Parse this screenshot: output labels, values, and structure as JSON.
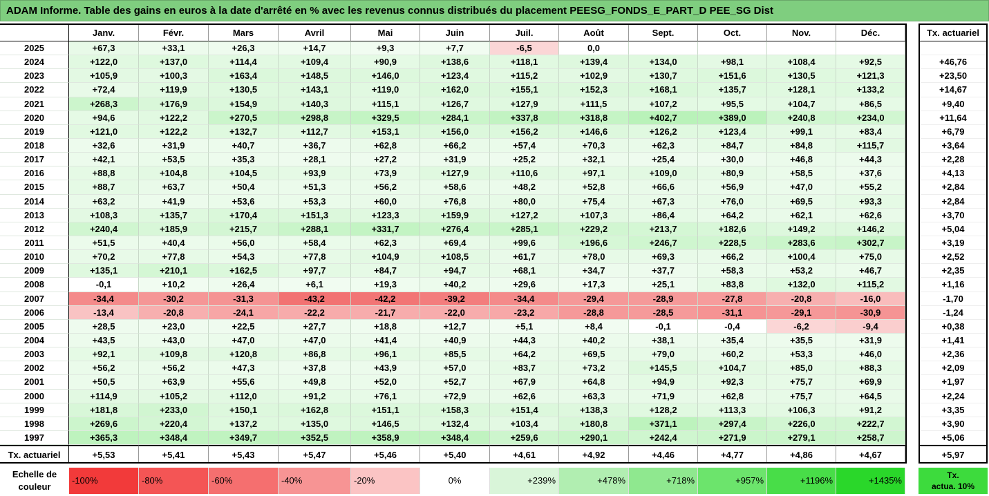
{
  "title": "ADAM Informe. Table des gains en euros à la date d'arrêté en % avec les revenus connus distribués du placement PEESG_FONDS_E_PART_D PEE_SG Dist",
  "months": [
    "Janv.",
    "Févr.",
    "Mars",
    "Avril",
    "Mai",
    "Juin",
    "Juil.",
    "Août",
    "Sept.",
    "Oct.",
    "Nov.",
    "Déc."
  ],
  "side_header": "Tx. actuariel",
  "rows": [
    {
      "year": "2025",
      "values": [
        "+67,3",
        "+33,1",
        "+26,3",
        "+14,7",
        "+9,3",
        "+7,7",
        "-6,5",
        "0,0",
        "",
        "",
        "",
        ""
      ],
      "tx": ""
    },
    {
      "year": "2024",
      "values": [
        "+122,0",
        "+137,0",
        "+114,4",
        "+109,4",
        "+90,9",
        "+138,6",
        "+118,1",
        "+139,4",
        "+134,0",
        "+98,1",
        "+108,4",
        "+92,5"
      ],
      "tx": "+46,76"
    },
    {
      "year": "2023",
      "values": [
        "+105,9",
        "+100,3",
        "+163,4",
        "+148,5",
        "+146,0",
        "+123,4",
        "+115,2",
        "+102,9",
        "+130,7",
        "+151,6",
        "+130,5",
        "+121,3"
      ],
      "tx": "+23,50"
    },
    {
      "year": "2022",
      "values": [
        "+72,4",
        "+119,9",
        "+130,5",
        "+143,1",
        "+119,0",
        "+162,0",
        "+155,1",
        "+152,3",
        "+168,1",
        "+135,7",
        "+128,1",
        "+133,2"
      ],
      "tx": "+14,67"
    },
    {
      "year": "2021",
      "values": [
        "+268,3",
        "+176,9",
        "+154,9",
        "+140,3",
        "+115,1",
        "+126,7",
        "+127,9",
        "+111,5",
        "+107,2",
        "+95,5",
        "+104,7",
        "+86,5"
      ],
      "tx": "+9,40"
    },
    {
      "year": "2020",
      "values": [
        "+94,6",
        "+122,2",
        "+270,5",
        "+298,8",
        "+329,5",
        "+284,1",
        "+337,8",
        "+318,8",
        "+402,7",
        "+389,0",
        "+240,8",
        "+234,0"
      ],
      "tx": "+11,64"
    },
    {
      "year": "2019",
      "values": [
        "+121,0",
        "+122,2",
        "+132,7",
        "+112,7",
        "+153,1",
        "+156,0",
        "+156,2",
        "+146,6",
        "+126,2",
        "+123,4",
        "+99,1",
        "+83,4"
      ],
      "tx": "+6,79"
    },
    {
      "year": "2018",
      "values": [
        "+32,6",
        "+31,9",
        "+40,7",
        "+36,7",
        "+62,8",
        "+66,2",
        "+57,4",
        "+70,3",
        "+62,3",
        "+84,7",
        "+84,8",
        "+115,7"
      ],
      "tx": "+3,64"
    },
    {
      "year": "2017",
      "values": [
        "+42,1",
        "+53,5",
        "+35,3",
        "+28,1",
        "+27,2",
        "+31,9",
        "+25,2",
        "+32,1",
        "+25,4",
        "+30,0",
        "+46,8",
        "+44,3"
      ],
      "tx": "+2,28"
    },
    {
      "year": "2016",
      "values": [
        "+88,8",
        "+104,8",
        "+104,5",
        "+93,9",
        "+73,9",
        "+127,9",
        "+110,6",
        "+97,1",
        "+109,0",
        "+80,9",
        "+58,5",
        "+37,6"
      ],
      "tx": "+4,13"
    },
    {
      "year": "2015",
      "values": [
        "+88,7",
        "+63,7",
        "+50,4",
        "+51,3",
        "+56,2",
        "+58,6",
        "+48,2",
        "+52,8",
        "+66,6",
        "+56,9",
        "+47,0",
        "+55,2"
      ],
      "tx": "+2,84"
    },
    {
      "year": "2014",
      "values": [
        "+63,2",
        "+41,9",
        "+53,6",
        "+53,3",
        "+60,0",
        "+76,8",
        "+80,0",
        "+75,4",
        "+67,3",
        "+76,0",
        "+69,5",
        "+93,3"
      ],
      "tx": "+2,84"
    },
    {
      "year": "2013",
      "values": [
        "+108,3",
        "+135,7",
        "+170,4",
        "+151,3",
        "+123,3",
        "+159,9",
        "+127,2",
        "+107,3",
        "+86,4",
        "+64,2",
        "+62,1",
        "+62,6"
      ],
      "tx": "+3,70"
    },
    {
      "year": "2012",
      "values": [
        "+240,4",
        "+185,9",
        "+215,7",
        "+288,1",
        "+331,7",
        "+276,4",
        "+285,1",
        "+229,2",
        "+213,7",
        "+182,6",
        "+149,2",
        "+146,2"
      ],
      "tx": "+5,04"
    },
    {
      "year": "2011",
      "values": [
        "+51,5",
        "+40,4",
        "+56,0",
        "+58,4",
        "+62,3",
        "+69,4",
        "+99,6",
        "+196,6",
        "+246,7",
        "+228,5",
        "+283,6",
        "+302,7"
      ],
      "tx": "+3,19"
    },
    {
      "year": "2010",
      "values": [
        "+70,2",
        "+77,8",
        "+54,3",
        "+77,8",
        "+104,9",
        "+108,5",
        "+61,7",
        "+78,0",
        "+69,3",
        "+66,2",
        "+100,4",
        "+75,0"
      ],
      "tx": "+2,52"
    },
    {
      "year": "2009",
      "values": [
        "+135,1",
        "+210,1",
        "+162,5",
        "+97,7",
        "+84,7",
        "+94,7",
        "+68,1",
        "+34,7",
        "+37,7",
        "+58,3",
        "+53,2",
        "+46,7"
      ],
      "tx": "+2,35"
    },
    {
      "year": "2008",
      "values": [
        "-0,1",
        "+10,2",
        "+26,4",
        "+6,1",
        "+19,3",
        "+40,2",
        "+29,6",
        "+17,3",
        "+25,1",
        "+83,8",
        "+132,0",
        "+115,2"
      ],
      "tx": "+1,16"
    },
    {
      "year": "2007",
      "values": [
        "-34,4",
        "-30,2",
        "-31,3",
        "-43,2",
        "-42,2",
        "-39,2",
        "-34,4",
        "-29,4",
        "-28,9",
        "-27,8",
        "-20,8",
        "-16,0"
      ],
      "tx": "-1,70"
    },
    {
      "year": "2006",
      "values": [
        "-13,4",
        "-20,8",
        "-24,1",
        "-22,2",
        "-21,7",
        "-22,0",
        "-23,2",
        "-28,8",
        "-28,5",
        "-31,1",
        "-29,1",
        "-30,9"
      ],
      "tx": "-1,24"
    },
    {
      "year": "2005",
      "values": [
        "+28,5",
        "+23,0",
        "+22,5",
        "+27,7",
        "+18,8",
        "+12,7",
        "+5,1",
        "+8,4",
        "-0,1",
        "-0,4",
        "-6,2",
        "-9,4"
      ],
      "tx": "+0,38"
    },
    {
      "year": "2004",
      "values": [
        "+43,5",
        "+43,0",
        "+47,0",
        "+47,0",
        "+41,4",
        "+40,9",
        "+44,3",
        "+40,2",
        "+38,1",
        "+35,4",
        "+35,5",
        "+31,9"
      ],
      "tx": "+1,41"
    },
    {
      "year": "2003",
      "values": [
        "+92,1",
        "+109,8",
        "+120,8",
        "+86,8",
        "+96,1",
        "+85,5",
        "+64,2",
        "+69,5",
        "+79,0",
        "+60,2",
        "+53,3",
        "+46,0"
      ],
      "tx": "+2,36"
    },
    {
      "year": "2002",
      "values": [
        "+56,2",
        "+56,2",
        "+47,3",
        "+37,8",
        "+43,9",
        "+57,0",
        "+83,7",
        "+73,2",
        "+145,5",
        "+104,7",
        "+85,0",
        "+88,3"
      ],
      "tx": "+2,09"
    },
    {
      "year": "2001",
      "values": [
        "+50,5",
        "+63,9",
        "+55,6",
        "+49,8",
        "+52,0",
        "+52,7",
        "+67,9",
        "+64,8",
        "+94,9",
        "+92,3",
        "+75,7",
        "+69,9"
      ],
      "tx": "+1,97"
    },
    {
      "year": "2000",
      "values": [
        "+114,9",
        "+105,2",
        "+112,0",
        "+91,2",
        "+76,1",
        "+72,9",
        "+62,6",
        "+63,3",
        "+71,9",
        "+62,8",
        "+75,7",
        "+64,5"
      ],
      "tx": "+2,24"
    },
    {
      "year": "1999",
      "values": [
        "+181,8",
        "+233,0",
        "+150,1",
        "+162,8",
        "+151,1",
        "+158,3",
        "+151,4",
        "+138,3",
        "+128,2",
        "+113,3",
        "+106,3",
        "+91,2"
      ],
      "tx": "+3,35"
    },
    {
      "year": "1998",
      "values": [
        "+269,6",
        "+220,4",
        "+137,2",
        "+135,0",
        "+146,5",
        "+132,4",
        "+103,4",
        "+180,8",
        "+371,1",
        "+297,4",
        "+226,0",
        "+222,7"
      ],
      "tx": "+3,90"
    },
    {
      "year": "1997",
      "values": [
        "+365,3",
        "+348,4",
        "+349,7",
        "+352,5",
        "+358,9",
        "+348,4",
        "+259,6",
        "+290,1",
        "+242,4",
        "+271,9",
        "+279,1",
        "+258,7"
      ],
      "tx": "+5,06"
    }
  ],
  "footer": {
    "label": "Tx. actuariel",
    "values": [
      "+5,53",
      "+5,41",
      "+5,43",
      "+5,47",
      "+5,46",
      "+5,40",
      "+4,61",
      "+4,92",
      "+4,46",
      "+4,77",
      "+4,86",
      "+4,67"
    ],
    "tx": "+5,97"
  },
  "legend": {
    "label_line1": "Echelle de",
    "label_line2": "couleur",
    "swatches": [
      {
        "text": "-100%",
        "color": "#f23a3a",
        "align": "l"
      },
      {
        "text": "-80%",
        "color": "#f45555",
        "align": "l"
      },
      {
        "text": "-60%",
        "color": "#f56f6f",
        "align": "l"
      },
      {
        "text": "-40%",
        "color": "#f79494",
        "align": "l"
      },
      {
        "text": "-20%",
        "color": "#fbc4c4",
        "align": "l"
      },
      {
        "text": "0%",
        "color": "#ffffff",
        "align": "c"
      },
      {
        "text": "+239%",
        "color": "#d9f5d9",
        "align": "r"
      },
      {
        "text": "+478%",
        "color": "#b1eeb1",
        "align": "r"
      },
      {
        "text": "+718%",
        "color": "#8fe88f",
        "align": "r"
      },
      {
        "text": "+957%",
        "color": "#6ce46c",
        "align": "r"
      },
      {
        "text": "+1196%",
        "color": "#48dd48",
        "align": "r"
      },
      {
        "text": "+1435%",
        "color": "#2ad72a",
        "align": "r"
      }
    ],
    "side_line1": "Tx.",
    "side_line2": "actua. 10%"
  },
  "scale": {
    "max_positive": 1435,
    "pos_light": "#eefbee",
    "pos_strong": "#2ad72a",
    "neg_strong": "#f23a3a"
  }
}
